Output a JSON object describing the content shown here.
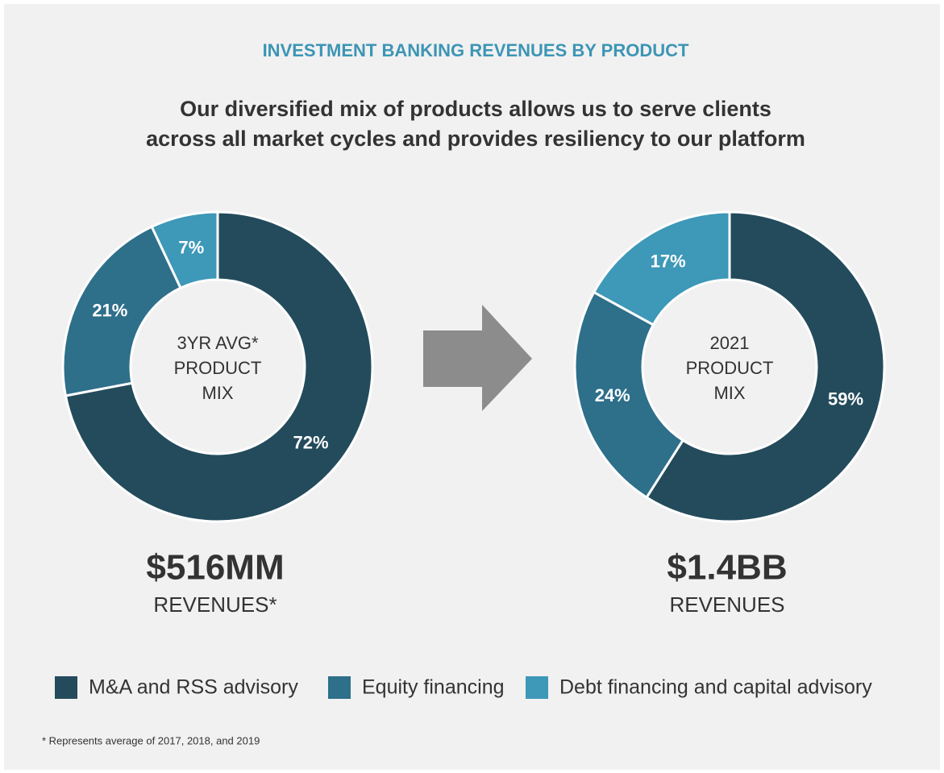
{
  "title": "INVESTMENT BANKING REVENUES BY PRODUCT",
  "subtitle": [
    "Our diversified mix of products allows us to serve clients",
    "across all market cycles and provides resiliency to our platform"
  ],
  "footnote": "*  Represents average of 2017, 2018, and 2019",
  "chart_data": [
    {
      "type": "pie",
      "donut": true,
      "center_label": [
        "3YR AVG*",
        "PRODUCT",
        "MIX"
      ],
      "total": "$516MM",
      "total_label": "REVENUES*",
      "categories": [
        "M&A and RSS advisory",
        "Equity financing",
        "Debt financing and capital advisory"
      ],
      "values": [
        72,
        21,
        7
      ],
      "value_labels": [
        "72%",
        "21%",
        "7%"
      ],
      "colors": [
        "#234b5c",
        "#2e6f8a",
        "#3e98b8"
      ]
    },
    {
      "type": "pie",
      "donut": true,
      "center_label": [
        "2021",
        "PRODUCT",
        "MIX"
      ],
      "total": "$1.4BB",
      "total_label": "REVENUES",
      "categories": [
        "M&A and RSS advisory",
        "Equity financing",
        "Debt financing and capital advisory"
      ],
      "values": [
        59,
        24,
        17
      ],
      "value_labels": [
        "59%",
        "24%",
        "17%"
      ],
      "colors": [
        "#234b5c",
        "#2e6f8a",
        "#3e98b8"
      ]
    }
  ]
}
